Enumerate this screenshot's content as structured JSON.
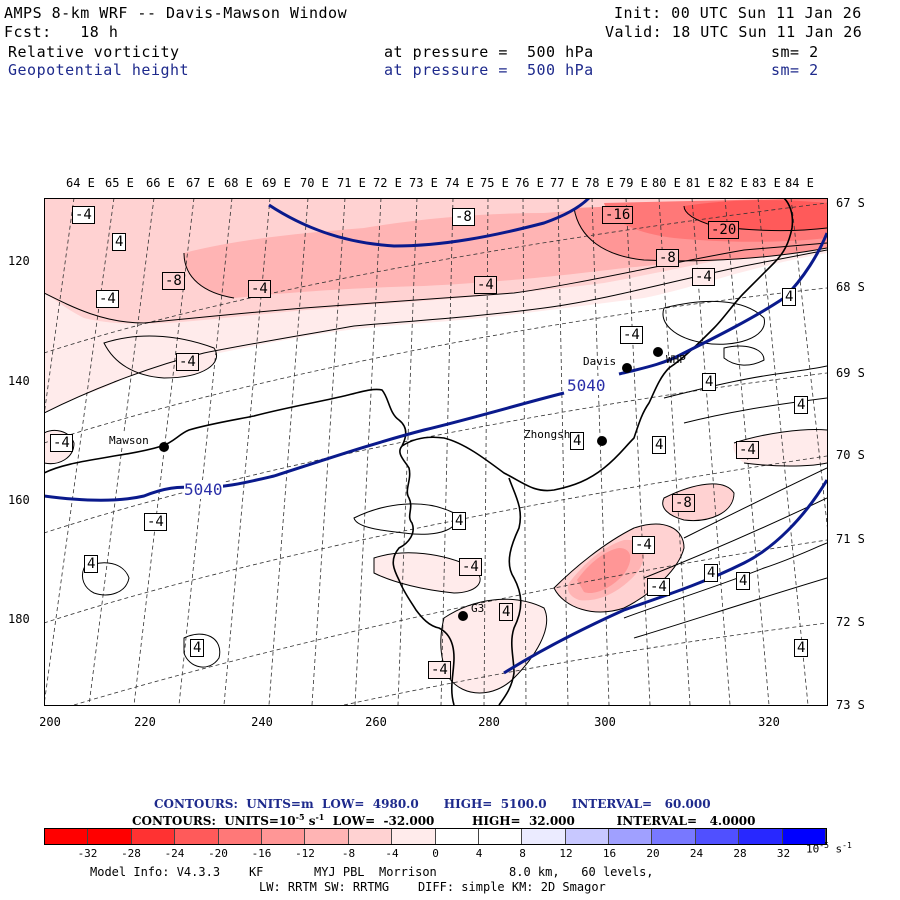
{
  "header": {
    "title": "AMPS 8-km WRF -- Davis-Mawson Window",
    "init": "Init: 00 UTC Sun 11 Jan 26",
    "fcst": "Fcst:   18 h",
    "valid": "Valid: 18 UTC Sun 11 Jan 26",
    "field1": {
      "name": "Relative vorticity",
      "pressure": "at pressure =  500 hPa",
      "sm": "sm= 2"
    },
    "field2": {
      "name": "Geopotential height",
      "pressure": "at pressure =  500 hPa",
      "sm": "sm= 2"
    }
  },
  "map": {
    "lon_labels": [
      "64 E",
      "65 E",
      "66 E",
      "67 E",
      "68 E",
      "69 E",
      "70 E",
      "71 E",
      "72 E",
      "73 E",
      "74 E",
      "75 E",
      "76 E",
      "77 E",
      "78 E",
      "79 E",
      "80 E",
      "81 E",
      "82 E",
      "83 E",
      "84 E"
    ],
    "lat_labels": [
      "67 S",
      "68 S",
      "69 S",
      "70 S",
      "71 S",
      "72 S",
      "73 S"
    ],
    "x_ticks": [
      "200",
      "220",
      "240",
      "260",
      "280",
      "300",
      "320"
    ],
    "y_ticks": [
      "120",
      "140",
      "160",
      "180"
    ],
    "stations": [
      {
        "name": "Mawson"
      },
      {
        "name": "Davis"
      },
      {
        "name": "Zhongshan"
      },
      {
        "name": "G3"
      },
      {
        "name": "WHP"
      }
    ],
    "height_labels": [
      "5040",
      "5040"
    ],
    "vort_labels": [
      "-4",
      "4",
      "-8",
      "-16",
      "-20",
      "-8",
      "-4",
      "-4",
      "-8",
      "-4",
      "-4",
      "4",
      "-4",
      "4",
      "-4",
      "-4",
      "4",
      "-4",
      "4",
      "-8",
      "-4",
      "4",
      "-4",
      "4",
      "-4",
      "4",
      "-4",
      "4",
      "4",
      "4",
      "-4",
      "4",
      "4"
    ]
  },
  "footer": {
    "contours1": "CONTOURS:  UNITS=m  LOW=  4980.0      HIGH=  5100.0      INTERVAL=   60.000",
    "contours2_a": "CONTOURS:  UNITS=10",
    "contours2_sup": "-5",
    "contours2_b": " s",
    "contours2_sup2": "-1",
    "contours2_c": "  LOW=  -32.000         HIGH=  32.000          INTERVAL=   4.0000",
    "colorbar_labels": [
      "-32",
      "-28",
      "-24",
      "-20",
      "-16",
      "-12",
      "-8",
      "-4",
      "0",
      "4",
      "8",
      "12",
      "16",
      "20",
      "24",
      "28",
      "32"
    ],
    "colorbar_unit_base": "10",
    "colorbar_unit_sup": "-5",
    "colorbar_unit_s": " s",
    "colorbar_unit_sup2": "-1",
    "colorbar_colors": [
      "#ff0000",
      "#ff3232",
      "#ff5a5a",
      "#ff7878",
      "#ff9696",
      "#ffb4b4",
      "#ffd2d2",
      "#ffebeb",
      "#ffffff",
      "#ffffff",
      "#ebebff",
      "#c8c8ff",
      "#a0a0ff",
      "#7878ff",
      "#5050ff",
      "#2828ff",
      "#0000ff"
    ],
    "model_info_1": "Model Info: V4.3.3    KF       MYJ PBL  Morrison          8.0 km,   60 levels,",
    "model_info_2": "LW: RRTM SW: RRTMG    DIFF: simple KM: 2D Smagor"
  }
}
